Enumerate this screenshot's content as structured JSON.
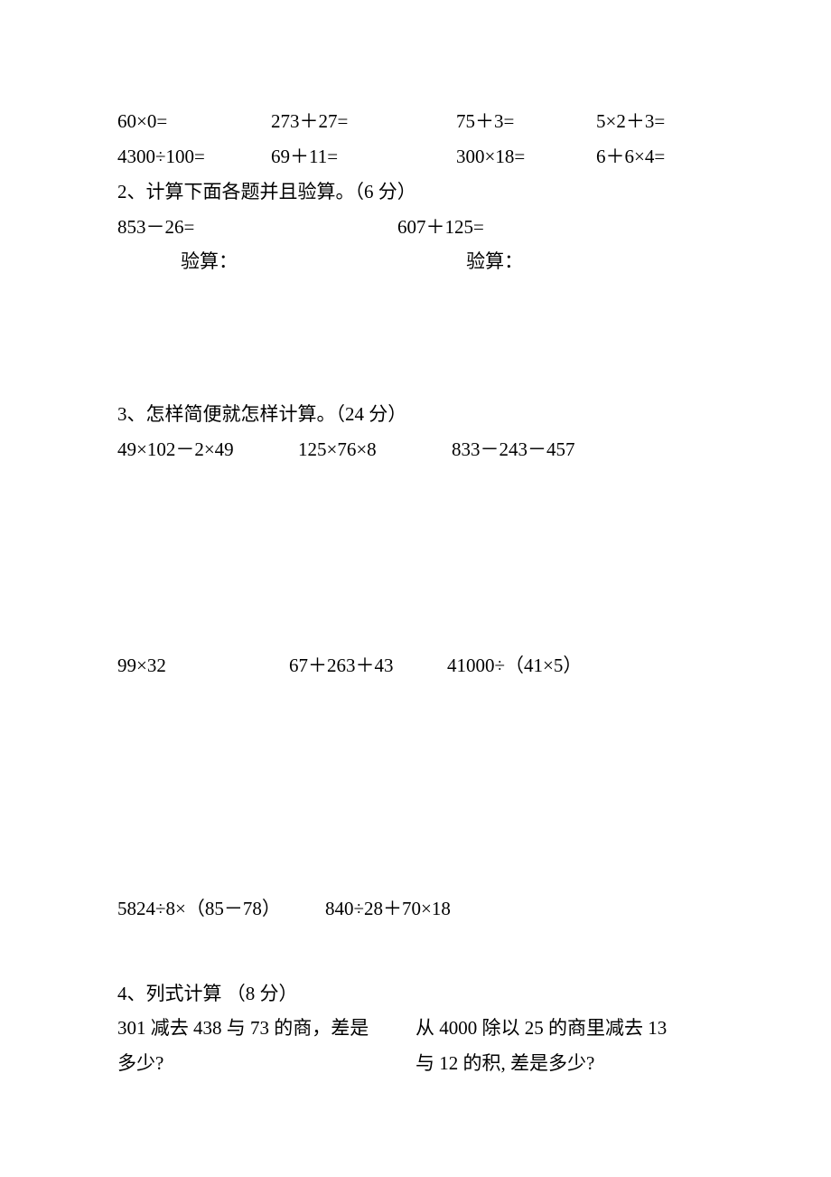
{
  "row1": {
    "a": "60×0=",
    "b": "273＋27=",
    "c": "75＋3=",
    "d": "5×2＋3="
  },
  "row2": {
    "a": "4300÷100=",
    "b": "69＋11=",
    "c": "300×18=",
    "d": "6＋6×4="
  },
  "q2": {
    "title": "2、计算下面各题并且验算。（6 分）",
    "left": "853－26=",
    "right": "607＋125=",
    "check_left": "验算：",
    "check_right": "验算："
  },
  "q3": {
    "title": "3、怎样简便就怎样计算。（24 分）",
    "row1": {
      "a": "49×102－2×49",
      "b": "125×76×8",
      "c": "833－243－457"
    },
    "row2": {
      "a": "99×32",
      "b": "67＋263＋43",
      "c": "41000÷（41×5）"
    },
    "row3": {
      "a": "5824÷8×（85－78）",
      "b": "840÷28＋70×18"
    }
  },
  "q4": {
    "title": "4、列式计算 （8 分）",
    "left_line1": "301 减去 438 与 73 的商，差是",
    "left_line2": "多少?",
    "right_line1": "从 4000 除以 25 的商里减去 13",
    "right_line2": "与 12 的积, 差是多少?"
  }
}
